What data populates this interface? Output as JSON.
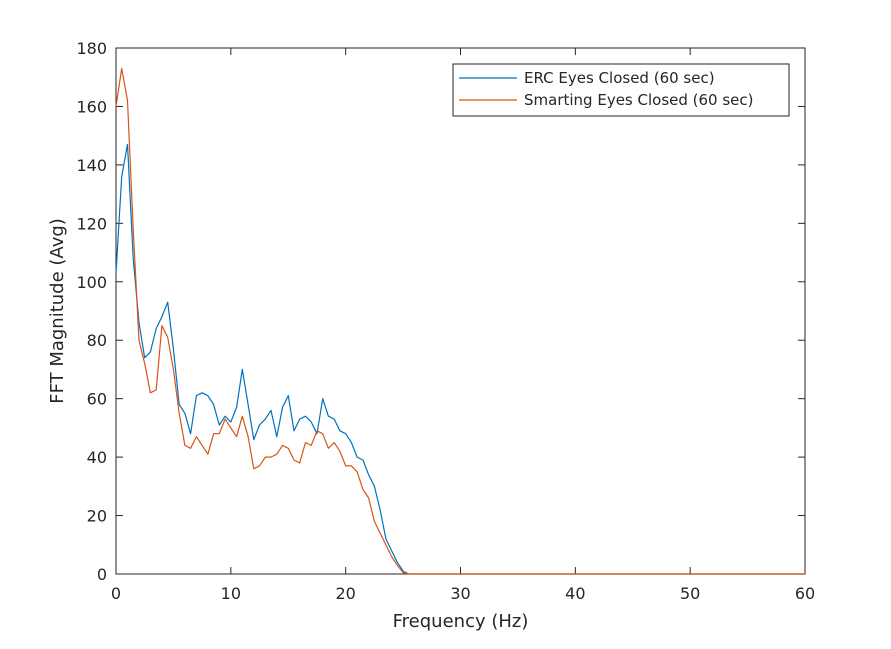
{
  "chart_data": {
    "type": "line",
    "title": "",
    "xlabel": "Frequency (Hz)",
    "ylabel": "FFT Magnitude (Avg)",
    "xlim": [
      0,
      60
    ],
    "ylim": [
      0,
      180
    ],
    "xticks": [
      0,
      10,
      20,
      30,
      40,
      50,
      60
    ],
    "yticks": [
      0,
      20,
      40,
      60,
      80,
      100,
      120,
      140,
      160,
      180
    ],
    "grid": false,
    "legend_position": "top-right",
    "series": [
      {
        "name": "ERC Eyes Closed (60 sec)",
        "color": "#0072BD",
        "x": [
          0,
          0.5,
          1,
          1.5,
          2,
          2.5,
          3,
          3.5,
          4,
          4.5,
          5,
          5.5,
          6,
          6.5,
          7,
          7.5,
          8,
          8.5,
          9,
          9.5,
          10,
          10.5,
          11,
          11.5,
          12,
          12.5,
          13,
          13.5,
          14,
          14.5,
          15,
          15.5,
          16,
          16.5,
          17,
          17.5,
          18,
          18.5,
          19,
          19.5,
          20,
          20.5,
          21,
          21.5,
          22,
          22.5,
          23,
          23.5,
          24,
          24.5,
          25,
          25.5,
          26,
          30,
          40,
          50,
          60
        ],
        "y": [
          103,
          136,
          147,
          108,
          86,
          74,
          76,
          84,
          88,
          93,
          77,
          58,
          55,
          48,
          61,
          62,
          61,
          58,
          51,
          54,
          52,
          57,
          70,
          58,
          46,
          51,
          53,
          56,
          47,
          57,
          61,
          49,
          53,
          54,
          52,
          48,
          60,
          54,
          53,
          49,
          48,
          45,
          40,
          39,
          34,
          30,
          22,
          12,
          8,
          4,
          1,
          0,
          0,
          0,
          0,
          0,
          0
        ]
      },
      {
        "name": "Smarting Eyes Closed (60 sec)",
        "color": "#D95319",
        "x": [
          0,
          0.5,
          1,
          1.5,
          2,
          2.5,
          3,
          3.5,
          4,
          4.5,
          5,
          5.5,
          6,
          6.5,
          7,
          7.5,
          8,
          8.5,
          9,
          9.5,
          10,
          10.5,
          11,
          11.5,
          12,
          12.5,
          13,
          13.5,
          14,
          14.5,
          15,
          15.5,
          16,
          16.5,
          17,
          17.5,
          18,
          18.5,
          19,
          19.5,
          20,
          20.5,
          21,
          21.5,
          22,
          22.5,
          23,
          23.5,
          24,
          24.5,
          25,
          25.5,
          26,
          30,
          40,
          50,
          60
        ],
        "y": [
          160,
          173,
          162,
          118,
          80,
          72,
          62,
          63,
          85,
          81,
          70,
          55,
          44,
          43,
          47,
          44,
          41,
          48,
          48,
          53,
          50,
          47,
          54,
          47,
          36,
          37,
          40,
          40,
          41,
          44,
          43,
          39,
          38,
          45,
          44,
          49,
          48,
          43,
          45,
          42,
          37,
          37,
          35,
          29,
          26,
          18,
          14,
          10,
          6,
          3,
          0.5,
          0,
          0,
          0,
          0,
          0,
          0
        ]
      }
    ]
  }
}
